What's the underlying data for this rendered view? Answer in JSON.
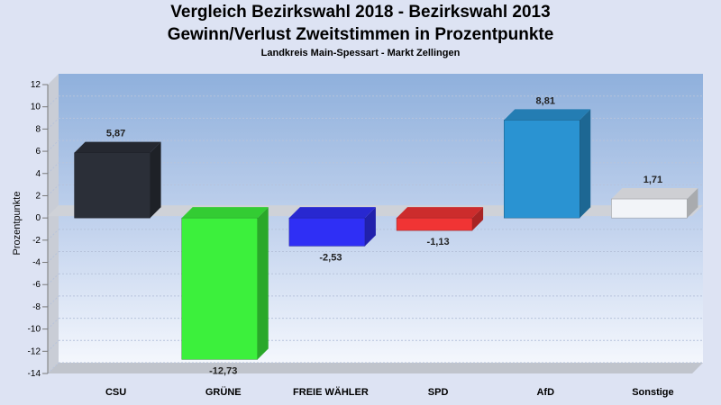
{
  "chart_data": {
    "type": "bar",
    "title": "Vergleich Bezirkswahl 2018 - Bezirkswahl 2013",
    "subtitle_line": "Gewinn/Verlust Zweitstimmen in Prozentpunkte",
    "caption": "Landkreis Main-Spessart - Markt Zellingen",
    "xlabel": "",
    "ylabel": "Prozentpunkte",
    "ylim": [
      -14,
      12
    ],
    "yticks": [
      12,
      10,
      8,
      6,
      4,
      2,
      0,
      -2,
      -4,
      -6,
      -8,
      -10,
      -12,
      -14
    ],
    "categories": [
      "CSU",
      "GRÜNE",
      "FREIE WÄHLER",
      "SPD",
      "AfD",
      "Sonstige"
    ],
    "values": [
      5.87,
      -12.73,
      -2.53,
      -1.13,
      8.81,
      1.71
    ],
    "value_labels": [
      "5,87",
      "-12,73",
      "-2,53",
      "-1,13",
      "8,81",
      "1,71"
    ],
    "colors": [
      "#2b2f38",
      "#3cf03c",
      "#2f2ff5",
      "#f03434",
      "#2a93d2",
      "#f2f4f8"
    ],
    "legend": "none",
    "grid": true
  }
}
